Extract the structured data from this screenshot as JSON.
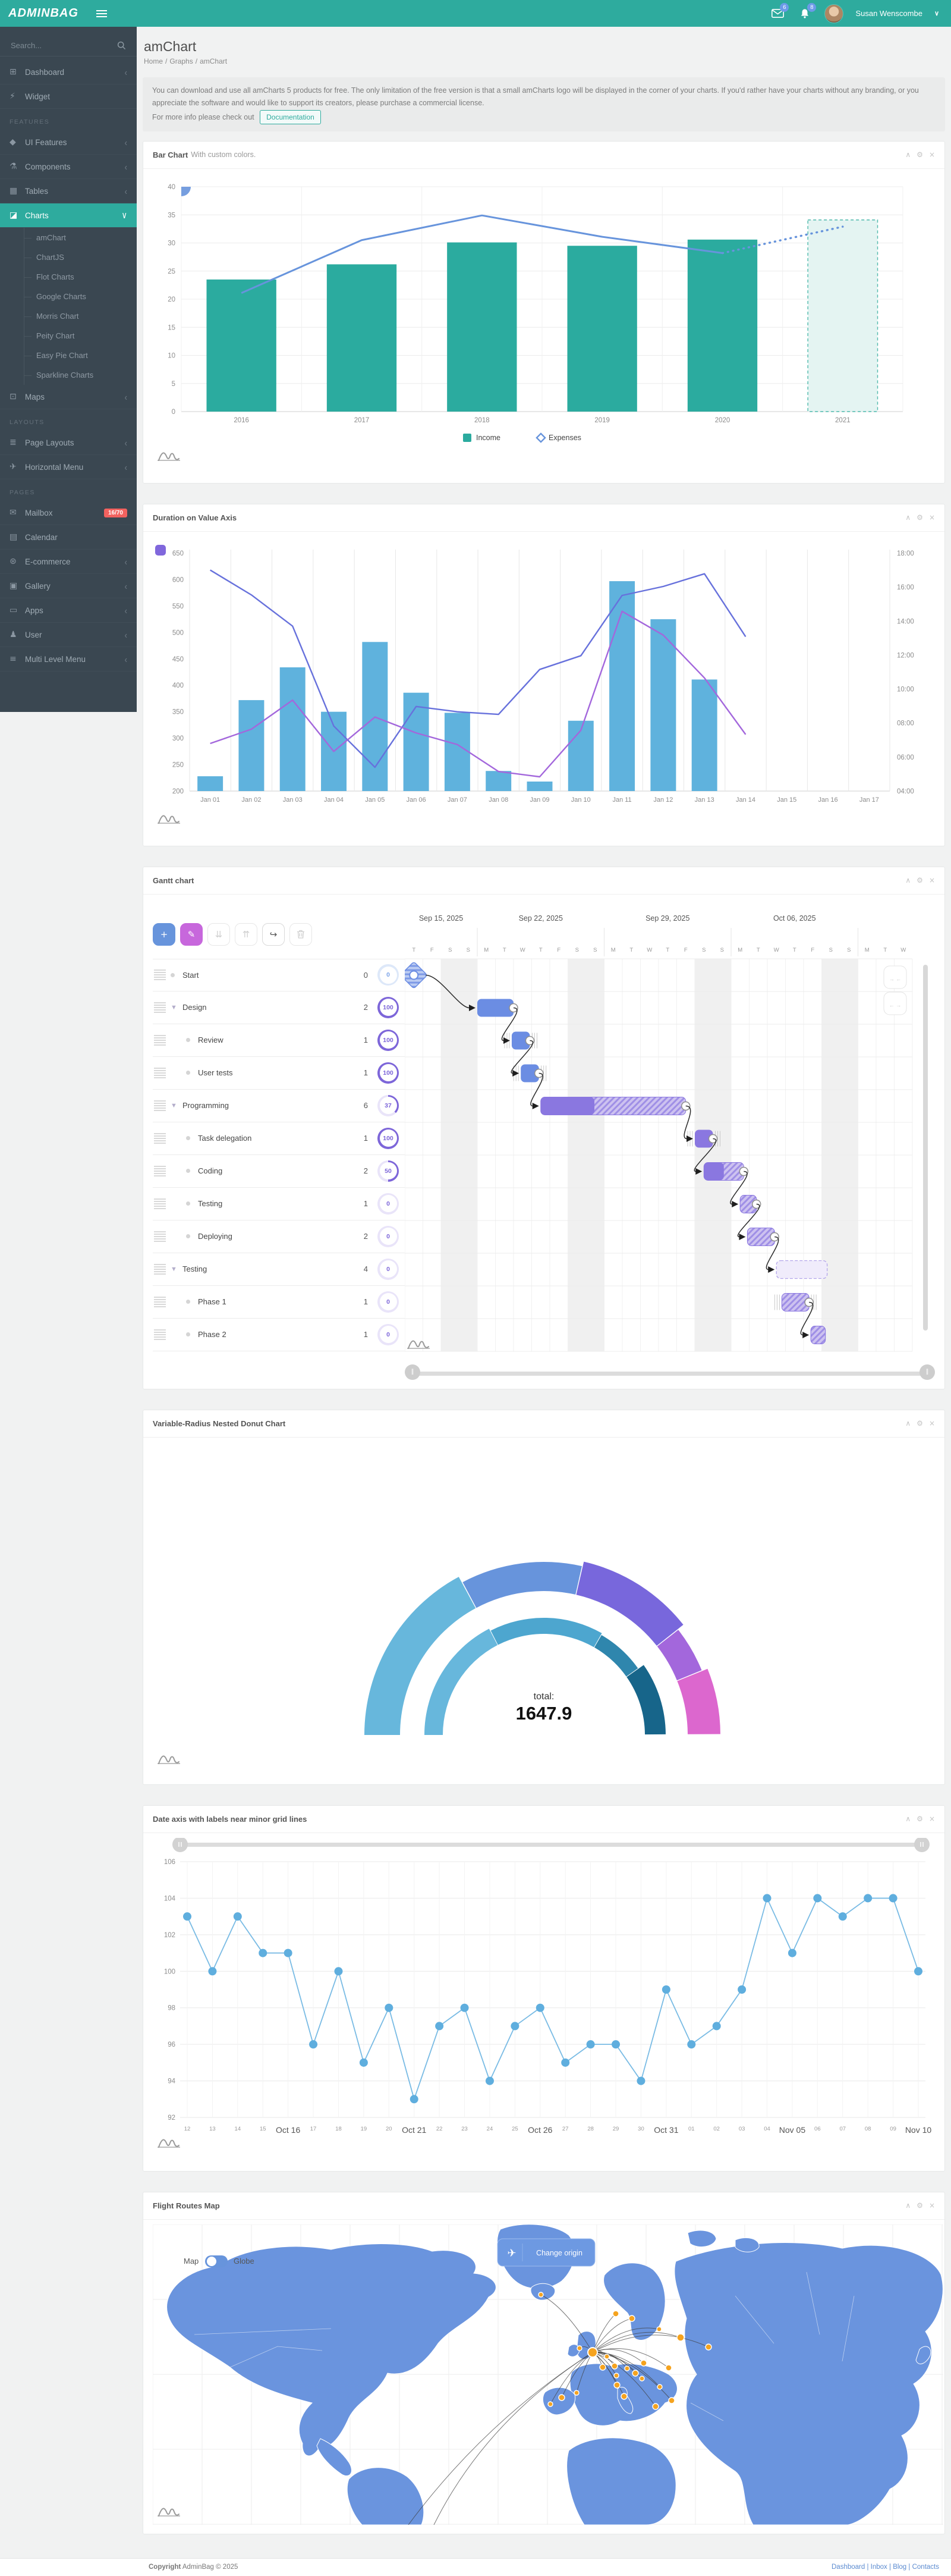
{
  "app": {
    "name": "ADMINBAG"
  },
  "header": {
    "search_placeholder": "Search...",
    "messages_count": "6",
    "notifications_count": "8",
    "user_name": "Susan Wenscombe"
  },
  "sidebar": {
    "items": [
      {
        "type": "item",
        "label": "Dashboard",
        "icon": "dashboard-icon",
        "glyph": "⊞",
        "chevron": true
      },
      {
        "type": "item",
        "label": "Widget",
        "icon": "widget-icon",
        "glyph": "⚡"
      },
      {
        "type": "head",
        "label": "FEATURES"
      },
      {
        "type": "item",
        "label": "UI Features",
        "icon": "ui-features-icon",
        "glyph": "◆",
        "chevron": true
      },
      {
        "type": "item",
        "label": "Components",
        "icon": "components-icon",
        "glyph": "⚗",
        "chevron": true
      },
      {
        "type": "item",
        "label": "Tables",
        "icon": "tables-icon",
        "glyph": "▦",
        "chevron": true
      },
      {
        "type": "item",
        "label": "Charts",
        "icon": "charts-icon",
        "glyph": "◪",
        "active": true,
        "expanded": true
      },
      {
        "type": "sub",
        "label": "amChart"
      },
      {
        "type": "sub",
        "label": "ChartJS"
      },
      {
        "type": "sub",
        "label": "Flot Charts"
      },
      {
        "type": "sub",
        "label": "Google Charts"
      },
      {
        "type": "sub",
        "label": "Morris Chart"
      },
      {
        "type": "sub",
        "label": "Peity Chart"
      },
      {
        "type": "sub",
        "label": "Easy Pie Chart"
      },
      {
        "type": "sub",
        "label": "Sparkline Charts"
      },
      {
        "type": "item",
        "label": "Maps",
        "icon": "maps-icon",
        "glyph": "⊡",
        "chevron": true
      },
      {
        "type": "head",
        "label": "LAYOUTS"
      },
      {
        "type": "item",
        "label": "Page Layouts",
        "icon": "page-layouts-icon",
        "glyph": "≣",
        "chevron": true
      },
      {
        "type": "item",
        "label": "Horizontal Menu",
        "icon": "horizontal-menu-icon",
        "glyph": "✈",
        "chevron": true
      },
      {
        "type": "head",
        "label": "PAGES"
      },
      {
        "type": "item",
        "label": "Mailbox",
        "icon": "mailbox-icon",
        "glyph": "✉",
        "badge": "16/70"
      },
      {
        "type": "item",
        "label": "Calendar",
        "icon": "calendar-icon",
        "glyph": "▤"
      },
      {
        "type": "item",
        "label": "E-commerce",
        "icon": "ecommerce-icon",
        "glyph": "⊛",
        "chevron": true
      },
      {
        "type": "item",
        "label": "Gallery",
        "icon": "gallery-icon",
        "glyph": "▣",
        "chevron": true
      },
      {
        "type": "item",
        "label": "Apps",
        "icon": "apps-icon",
        "glyph": "▭",
        "chevron": true
      },
      {
        "type": "item",
        "label": "User",
        "icon": "user-icon",
        "glyph": "♟",
        "chevron": true
      },
      {
        "type": "item",
        "label": "Multi Level Menu",
        "icon": "multi-level-icon",
        "glyph": "≡",
        "chevron": true
      }
    ]
  },
  "page": {
    "title": "amChart",
    "breadcrumb": [
      "Home",
      "Graphs",
      "amChart"
    ]
  },
  "alert": {
    "para1": "You can download and use all amCharts 5 products for free. The only limitation of the free version is that a small amCharts logo will be displayed in the corner of your charts. If you'd rather have your charts without any branding, or you appreciate the software and would like to support its creators, please purchase a commercial license.",
    "line2_prefix": "For more info please check out",
    "doc_button": "Documentation"
  },
  "panels": {
    "bar": {
      "title": "Bar Chart",
      "subtitle": "With custom colors."
    },
    "duration": {
      "title": "Duration on Value Axis",
      "subtitle": ""
    },
    "gantt": {
      "title": "Gantt chart",
      "subtitle": ""
    },
    "donut": {
      "title": "Variable-Radius Nested Donut Chart",
      "subtitle": ""
    },
    "dateaxis": {
      "title": "Date axis with labels near minor grid lines",
      "subtitle": ""
    },
    "map": {
      "title": "Flight Routes Map",
      "subtitle": ""
    }
  },
  "card_tool_icons": [
    {
      "name": "collapse-icon",
      "glyph": "∧"
    },
    {
      "name": "wrench-icon",
      "glyph": "⚙"
    },
    {
      "name": "close-icon",
      "glyph": "×"
    }
  ],
  "chart_data": [
    {
      "id": "bar-line-mix",
      "type": "bar",
      "title": "Bar Chart With custom colors.",
      "categories": [
        "2016",
        "2017",
        "2018",
        "2019",
        "2020",
        "2021"
      ],
      "series": [
        {
          "name": "Income",
          "type": "column",
          "color": "#2bab9f",
          "values": [
            23.5,
            26.2,
            30.1,
            29.5,
            30.6,
            34.1
          ],
          "last_is_forecast": true
        },
        {
          "name": "Expenses",
          "type": "line",
          "color": "#6794dc",
          "values": [
            21.1,
            30.5,
            34.9,
            31.1,
            28.2,
            32.9
          ],
          "dashed_from_index": 4
        }
      ],
      "ylim": [
        0,
        40
      ],
      "ytick": 5,
      "legend": [
        "Income",
        "Expenses"
      ],
      "legend_position": "bottom"
    },
    {
      "id": "duration-on-value-axis",
      "type": "bar",
      "title": "Duration on Value Axis",
      "categories": [
        "Jan 01",
        "Jan 02",
        "Jan 03",
        "Jan 04",
        "Jan 05",
        "Jan 06",
        "Jan 07",
        "Jan 08",
        "Jan 09",
        "Jan 10",
        "Jan 11",
        "Jan 12",
        "Jan 13",
        "Jan 14",
        "Jan 15",
        "Jan 16",
        "Jan 17"
      ],
      "series": [
        {
          "name": "Value",
          "type": "column",
          "color": "#5fb2dd",
          "values": [
            228,
            372,
            434,
            350,
            482,
            386,
            348,
            238,
            218,
            333,
            597,
            525,
            411
          ]
        },
        {
          "name": "Duration A",
          "type": "line",
          "color": "#6771dc",
          "values": [
            618,
            571,
            512,
            323,
            245,
            360,
            350,
            345,
            430,
            456,
            570,
            587,
            611,
            492
          ]
        },
        {
          "name": "Duration B",
          "type": "line",
          "color": "#a367dc",
          "values": [
            290,
            317,
            372,
            275,
            340,
            310,
            288,
            237,
            227,
            315,
            540,
            495,
            414,
            307
          ]
        }
      ],
      "ylim": [
        200,
        650
      ],
      "ytick": 50,
      "right_axis_labels": [
        "04:00",
        "06:00",
        "08:00",
        "10:00",
        "12:00",
        "14:00",
        "16:00",
        "18:00"
      ]
    },
    {
      "id": "gantt",
      "type": "table",
      "title": "Gantt chart",
      "toolbar": [
        {
          "name": "add-task-button",
          "glyph": "+",
          "style": "blue"
        },
        {
          "name": "edit-task-button",
          "glyph": "✎",
          "style": "purple"
        },
        {
          "name": "move-down-button",
          "glyph": "⇊",
          "style": "off"
        },
        {
          "name": "move-up-button",
          "glyph": "⇈",
          "style": "off"
        },
        {
          "name": "link-tasks-button",
          "glyph": "↪",
          "style": "on"
        },
        {
          "name": "delete-task-button",
          "glyph": "trash",
          "style": "off"
        }
      ],
      "weeks": [
        {
          "label": "Sep 15, 2025",
          "center_day": 2
        },
        {
          "label": "Sep 22, 2025",
          "center_day": 7.5
        },
        {
          "label": "Sep 29, 2025",
          "center_day": 14.5
        },
        {
          "label": "Oct 06, 2025",
          "center_day": 21.5
        }
      ],
      "days": 28,
      "day_letters": "TFSSMTWTFSSMTWTFSSMTWTFSSMTW",
      "weekend_days": [
        2,
        3,
        9,
        10,
        16,
        17,
        23,
        24
      ],
      "tasks": [
        {
          "name": "Start",
          "count": "0",
          "progress": 0,
          "level": 0,
          "group": false,
          "ring": "blue",
          "bar": {
            "type": "milestone",
            "day": 0.5,
            "color": "blue"
          }
        },
        {
          "name": "Design",
          "count": "2",
          "progress": 100,
          "level": 0,
          "group": true,
          "bar": {
            "start": 4,
            "end": 6,
            "color": "blue"
          }
        },
        {
          "name": "Review",
          "count": "1",
          "progress": 100,
          "level": 1,
          "bar": {
            "start": 5.9,
            "end": 6.9,
            "color": "blue",
            "ticks": true
          }
        },
        {
          "name": "User tests",
          "count": "1",
          "progress": 100,
          "level": 1,
          "bar": {
            "start": 6.4,
            "end": 7.4,
            "color": "blue",
            "ticks": true
          }
        },
        {
          "name": "Programming",
          "count": "6",
          "progress": 37,
          "level": 0,
          "group": true,
          "bar": {
            "start": 7.5,
            "end": 15.5,
            "color": "purple"
          }
        },
        {
          "name": "Task delegation",
          "count": "1",
          "progress": 100,
          "level": 1,
          "bar": {
            "start": 16.0,
            "end": 17.0,
            "color": "purple",
            "ticks": true
          }
        },
        {
          "name": "Coding",
          "count": "2",
          "progress": 50,
          "level": 1,
          "bar": {
            "start": 16.5,
            "end": 18.7,
            "color": "purple"
          }
        },
        {
          "name": "Testing",
          "count": "1",
          "progress": 0,
          "level": 1,
          "bar": {
            "start": 18.5,
            "end": 19.4,
            "color": "purple"
          }
        },
        {
          "name": "Deploying",
          "count": "2",
          "progress": 0,
          "level": 1,
          "bar": {
            "start": 18.9,
            "end": 20.4,
            "color": "purple"
          }
        },
        {
          "name": "Testing",
          "count": "4",
          "progress": 0,
          "level": 0,
          "group": true,
          "bar": {
            "start": 20.5,
            "end": 23.3,
            "color": "outline"
          }
        },
        {
          "name": "Phase 1",
          "count": "1",
          "progress": 0,
          "level": 1,
          "bar": {
            "start": 20.8,
            "end": 22.3,
            "color": "purple",
            "ticks": true
          }
        },
        {
          "name": "Phase 2",
          "count": "1",
          "progress": 0,
          "level": 1,
          "bar": {
            "start": 22.4,
            "end": 23.2,
            "color": "purple"
          }
        }
      ],
      "links": [
        [
          0,
          1
        ],
        [
          1,
          2
        ],
        [
          2,
          3
        ],
        [
          3,
          4
        ],
        [
          4,
          5
        ],
        [
          5,
          6
        ],
        [
          6,
          7
        ],
        [
          7,
          8
        ],
        [
          8,
          9
        ],
        [
          10,
          11
        ]
      ]
    },
    {
      "id": "nested-donut",
      "type": "pie",
      "title": "Variable-Radius Nested Donut Chart",
      "total_label": "total:",
      "total_value": "1647.9",
      "rings": [
        {
          "name": "outer",
          "inner_radius": 242,
          "slices": [
            {
              "value": 567.6,
              "color": "#67b7dc",
              "r_out": 302
            },
            {
              "value": 375.4,
              "color": "#6794dc",
              "r_out": 291
            },
            {
              "value": 357.0,
              "color": "#7867dc",
              "r_out": 299
            },
            {
              "value": 146.5,
              "color": "#a367dc",
              "r_out": 287
            },
            {
              "value": 201.4,
              "color": "#dc67ce",
              "r_out": 297
            }
          ]
        },
        {
          "name": "inner",
          "inner_radius": 170,
          "slices": [
            {
              "value": 63,
              "color": "#67b7dc",
              "r_out": 201
            },
            {
              "value": 57,
              "color": "#4da6cf",
              "r_out": 197
            },
            {
              "value": 25,
              "color": "#2f86ad",
              "r_out": 194
            },
            {
              "value": 35,
              "color": "#17658a",
              "r_out": 205
            }
          ]
        }
      ]
    },
    {
      "id": "date-axis-minor-grid",
      "type": "line",
      "title": "Date axis with labels near minor grid lines",
      "color": "#5faede",
      "labels": [
        "12",
        "13",
        "14",
        "15",
        "Oct 16",
        "17",
        "18",
        "19",
        "20",
        "Oct 21",
        "22",
        "23",
        "24",
        "25",
        "Oct 26",
        "27",
        "28",
        "29",
        "30",
        "Oct 31",
        "01",
        "02",
        "03",
        "04",
        "Nov 05",
        "06",
        "07",
        "08",
        "09",
        "Nov 10"
      ],
      "major_label_indexes": [
        4,
        9,
        14,
        19,
        24,
        29
      ],
      "values": [
        103,
        100,
        103,
        101,
        101,
        96,
        100,
        95,
        98,
        93,
        97,
        98,
        94,
        97,
        98,
        95,
        96,
        96,
        94,
        99,
        96,
        97,
        99,
        104,
        101,
        104,
        103,
        104,
        104,
        100
      ],
      "ylim": [
        92,
        106
      ],
      "ytick": 2,
      "has_scrollbar": true
    },
    {
      "id": "flight-routes-map",
      "type": "map",
      "title": "Flight Routes Map",
      "toggle_labels": [
        "Map",
        "Globe"
      ],
      "button_label": "Change origin",
      "land_color": "#6a94de",
      "marker_color": "#f5a31f",
      "hub": {
        "x": 740,
        "y": 215
      },
      "markers": [
        {
          "x": 653,
          "y": 118,
          "r": 4
        },
        {
          "x": 779,
          "y": 150,
          "r": 5
        },
        {
          "x": 806,
          "y": 158,
          "r": 5
        },
        {
          "x": 888,
          "y": 190,
          "r": 6
        },
        {
          "x": 852,
          "y": 176,
          "r": 4
        },
        {
          "x": 935,
          "y": 206,
          "r": 5
        },
        {
          "x": 718,
          "y": 208,
          "r": 4
        },
        {
          "x": 757,
          "y": 240,
          "r": 5
        },
        {
          "x": 764,
          "y": 222,
          "r": 4
        },
        {
          "x": 777,
          "y": 238,
          "r": 5
        },
        {
          "x": 780,
          "y": 254,
          "r": 4
        },
        {
          "x": 812,
          "y": 250,
          "r": 5
        },
        {
          "x": 798,
          "y": 242,
          "r": 4
        },
        {
          "x": 826,
          "y": 233,
          "r": 5
        },
        {
          "x": 823,
          "y": 259,
          "r": 4
        },
        {
          "x": 781,
          "y": 270,
          "r": 5
        },
        {
          "x": 793,
          "y": 289,
          "r": 5
        },
        {
          "x": 688,
          "y": 291,
          "r": 5
        },
        {
          "x": 669,
          "y": 302,
          "r": 4
        },
        {
          "x": 713,
          "y": 283,
          "r": 4
        },
        {
          "x": 846,
          "y": 306,
          "r": 5
        },
        {
          "x": 873,
          "y": 296,
          "r": 5
        },
        {
          "x": 868,
          "y": 241,
          "r": 5
        },
        {
          "x": 853,
          "y": 273,
          "r": 4
        }
      ],
      "offmap_route_ends": [
        [
          430,
          505
        ],
        [
          473,
          505
        ]
      ]
    }
  ],
  "footer": {
    "copyright_bold": "Copyright",
    "copyright_rest": "AdminBag © 2025",
    "links": [
      "Dashboard",
      "Inbox",
      "Blog",
      "Contacts"
    ]
  }
}
